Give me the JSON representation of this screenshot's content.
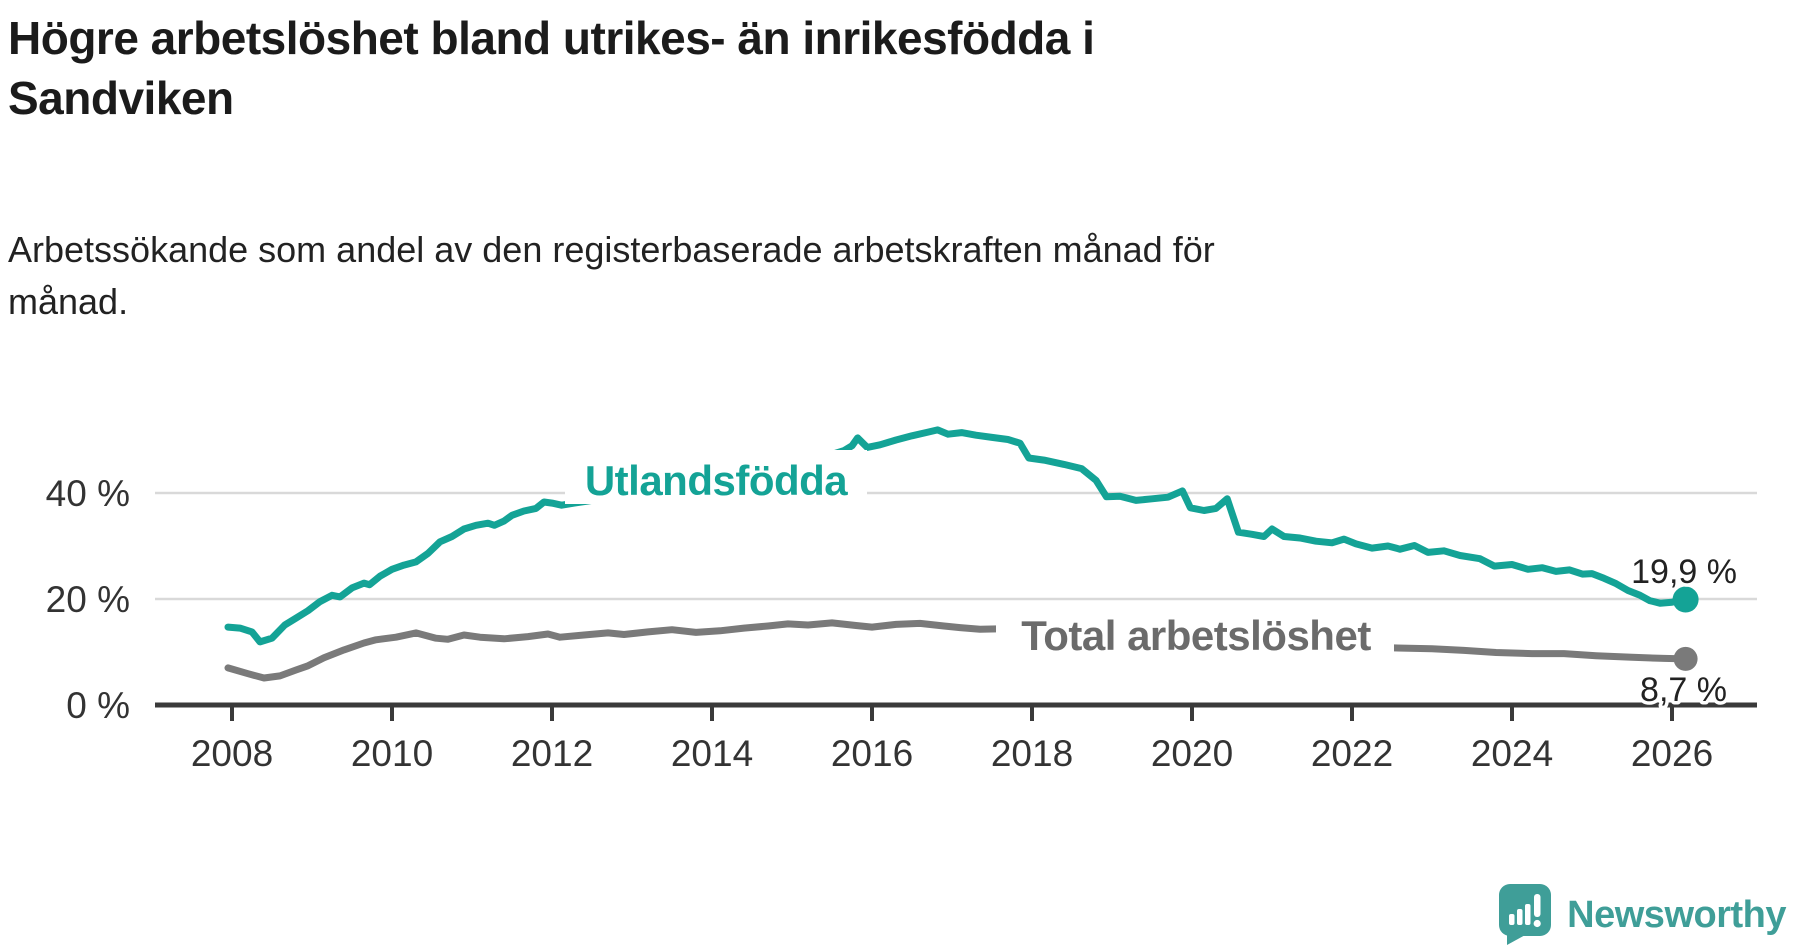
{
  "header": {
    "title_lines": [
      "Högre arbetslöshet bland utrikes- än inrikesfödda i",
      "Sandviken"
    ],
    "subtitle_lines": [
      "Arbetssökande som andel av den registerbaserade arbetskraften månad för",
      "månad."
    ]
  },
  "chart_data": {
    "type": "line",
    "title": "Högre arbetslöshet bland utrikes- än inrikesfödda i Sandviken",
    "subtitle": "Arbetssökande som andel av den registerbaserade arbetskraften månad för månad.",
    "grid": true,
    "legend_position": "inline-labels",
    "xlim": [
      2007.1,
      2027.2
    ],
    "ylim": [
      0,
      55
    ],
    "x_ticks": [
      2008,
      2010,
      2012,
      2014,
      2016,
      2018,
      2020,
      2022,
      2024,
      2026
    ],
    "y_ticks": [
      {
        "value": 40,
        "label": "40 %"
      },
      {
        "value": 20,
        "label": "20 %"
      },
      {
        "value": 0,
        "label": "0 %"
      }
    ],
    "series": [
      {
        "name": "Utlandsfödda",
        "slug": "utlandsfodda",
        "color": "#14a396",
        "label_color": "#14a396",
        "end_label": "19,9 %",
        "end_value": 19.9,
        "points": [
          [
            2007.95,
            14.7
          ],
          [
            2008.1,
            14.5
          ],
          [
            2008.25,
            13.8
          ],
          [
            2008.35,
            11.9
          ],
          [
            2008.5,
            12.6
          ],
          [
            2008.66,
            15.1
          ],
          [
            2008.8,
            16.4
          ],
          [
            2008.95,
            17.8
          ],
          [
            2009.1,
            19.5
          ],
          [
            2009.25,
            20.7
          ],
          [
            2009.35,
            20.4
          ],
          [
            2009.5,
            22.1
          ],
          [
            2009.65,
            23.0
          ],
          [
            2009.72,
            22.7
          ],
          [
            2009.85,
            24.3
          ],
          [
            2010.0,
            25.6
          ],
          [
            2010.15,
            26.4
          ],
          [
            2010.3,
            27.0
          ],
          [
            2010.45,
            28.6
          ],
          [
            2010.6,
            30.8
          ],
          [
            2010.75,
            31.8
          ],
          [
            2010.9,
            33.2
          ],
          [
            2011.05,
            33.9
          ],
          [
            2011.2,
            34.3
          ],
          [
            2011.28,
            33.9
          ],
          [
            2011.4,
            34.7
          ],
          [
            2011.5,
            35.8
          ],
          [
            2011.65,
            36.6
          ],
          [
            2011.8,
            37.1
          ],
          [
            2011.9,
            38.3
          ],
          [
            2012.0,
            38.1
          ],
          [
            2012.12,
            37.7
          ],
          [
            2012.28,
            38.1
          ],
          [
            2012.45,
            38.5
          ],
          [
            2012.62,
            38.9
          ],
          [
            2012.8,
            39.1
          ],
          [
            2012.97,
            39.7
          ],
          [
            2013.15,
            40.1
          ],
          [
            2013.45,
            41.0
          ],
          [
            2013.75,
            41.9
          ],
          [
            2014.05,
            42.9
          ],
          [
            2014.35,
            43.9
          ],
          [
            2014.65,
            44.9
          ],
          [
            2014.95,
            45.9
          ],
          [
            2015.25,
            46.7
          ],
          [
            2015.5,
            47.3
          ],
          [
            2015.65,
            48.0
          ],
          [
            2015.75,
            48.9
          ],
          [
            2015.82,
            50.4
          ],
          [
            2015.94,
            48.6
          ],
          [
            2016.1,
            49.1
          ],
          [
            2016.3,
            50.0
          ],
          [
            2016.5,
            50.8
          ],
          [
            2016.7,
            51.5
          ],
          [
            2016.82,
            51.9
          ],
          [
            2016.95,
            51.1
          ],
          [
            2017.12,
            51.4
          ],
          [
            2017.3,
            50.9
          ],
          [
            2017.5,
            50.5
          ],
          [
            2017.7,
            50.1
          ],
          [
            2017.85,
            49.4
          ],
          [
            2017.96,
            46.6
          ],
          [
            2018.15,
            46.2
          ],
          [
            2018.4,
            45.4
          ],
          [
            2018.62,
            44.6
          ],
          [
            2018.8,
            42.4
          ],
          [
            2018.93,
            39.3
          ],
          [
            2019.1,
            39.4
          ],
          [
            2019.3,
            38.6
          ],
          [
            2019.5,
            38.9
          ],
          [
            2019.7,
            39.2
          ],
          [
            2019.88,
            40.4
          ],
          [
            2019.98,
            37.2
          ],
          [
            2020.15,
            36.7
          ],
          [
            2020.3,
            37.1
          ],
          [
            2020.44,
            38.9
          ],
          [
            2020.58,
            32.6
          ],
          [
            2020.75,
            32.2
          ],
          [
            2020.9,
            31.8
          ],
          [
            2021.0,
            33.2
          ],
          [
            2021.15,
            31.8
          ],
          [
            2021.35,
            31.5
          ],
          [
            2021.55,
            30.9
          ],
          [
            2021.75,
            30.6
          ],
          [
            2021.9,
            31.3
          ],
          [
            2022.05,
            30.4
          ],
          [
            2022.25,
            29.6
          ],
          [
            2022.45,
            30.0
          ],
          [
            2022.6,
            29.4
          ],
          [
            2022.78,
            30.1
          ],
          [
            2022.95,
            28.8
          ],
          [
            2023.15,
            29.1
          ],
          [
            2023.35,
            28.2
          ],
          [
            2023.6,
            27.6
          ],
          [
            2023.78,
            26.2
          ],
          [
            2024.0,
            26.5
          ],
          [
            2024.2,
            25.6
          ],
          [
            2024.38,
            25.9
          ],
          [
            2024.55,
            25.2
          ],
          [
            2024.72,
            25.5
          ],
          [
            2024.88,
            24.7
          ],
          [
            2025.0,
            24.8
          ],
          [
            2025.15,
            23.9
          ],
          [
            2025.3,
            22.9
          ],
          [
            2025.45,
            21.6
          ],
          [
            2025.6,
            20.7
          ],
          [
            2025.72,
            19.7
          ],
          [
            2025.85,
            19.2
          ],
          [
            2026.0,
            19.4
          ],
          [
            2026.17,
            19.9
          ]
        ]
      },
      {
        "name": "Total arbetslöshet",
        "slug": "total-arbetsloshet",
        "color": "#7a7a7a",
        "label_color": "#6b6b6b",
        "end_label": "8,7 %",
        "end_value": 8.7,
        "points": [
          [
            2007.95,
            7.0
          ],
          [
            2008.2,
            5.9
          ],
          [
            2008.4,
            5.1
          ],
          [
            2008.6,
            5.5
          ],
          [
            2008.8,
            6.6
          ],
          [
            2008.95,
            7.4
          ],
          [
            2009.15,
            8.9
          ],
          [
            2009.4,
            10.4
          ],
          [
            2009.65,
            11.7
          ],
          [
            2009.8,
            12.3
          ],
          [
            2010.05,
            12.8
          ],
          [
            2010.3,
            13.6
          ],
          [
            2010.55,
            12.6
          ],
          [
            2010.7,
            12.4
          ],
          [
            2010.9,
            13.2
          ],
          [
            2011.1,
            12.8
          ],
          [
            2011.4,
            12.5
          ],
          [
            2011.7,
            12.9
          ],
          [
            2011.95,
            13.4
          ],
          [
            2012.1,
            12.8
          ],
          [
            2012.4,
            13.2
          ],
          [
            2012.7,
            13.6
          ],
          [
            2012.9,
            13.3
          ],
          [
            2013.2,
            13.8
          ],
          [
            2013.5,
            14.2
          ],
          [
            2013.8,
            13.7
          ],
          [
            2014.1,
            14.0
          ],
          [
            2014.4,
            14.5
          ],
          [
            2014.7,
            14.9
          ],
          [
            2014.95,
            15.3
          ],
          [
            2015.2,
            15.1
          ],
          [
            2015.5,
            15.5
          ],
          [
            2015.8,
            15.0
          ],
          [
            2016.0,
            14.7
          ],
          [
            2016.3,
            15.2
          ],
          [
            2016.6,
            15.4
          ],
          [
            2016.9,
            14.9
          ],
          [
            2017.1,
            14.6
          ],
          [
            2017.35,
            14.3
          ],
          [
            2017.64,
            14.4
          ],
          [
            2018.2,
            13.7
          ],
          [
            2018.8,
            13.0
          ],
          [
            2019.4,
            12.5
          ],
          [
            2020.0,
            13.1
          ],
          [
            2020.5,
            13.7
          ],
          [
            2021.0,
            12.7
          ],
          [
            2021.5,
            12.0
          ],
          [
            2022.0,
            11.3
          ],
          [
            2022.45,
            10.8
          ],
          [
            2023.0,
            10.6
          ],
          [
            2023.4,
            10.3
          ],
          [
            2023.8,
            9.9
          ],
          [
            2024.25,
            9.7
          ],
          [
            2024.65,
            9.7
          ],
          [
            2025.05,
            9.3
          ],
          [
            2025.5,
            9.0
          ],
          [
            2025.9,
            8.8
          ],
          [
            2026.17,
            8.7
          ]
        ]
      }
    ]
  },
  "logo": {
    "text": "Newsworthy",
    "color": "#3f9e98",
    "icon": "bar-chart-speech-bubble-icon"
  }
}
